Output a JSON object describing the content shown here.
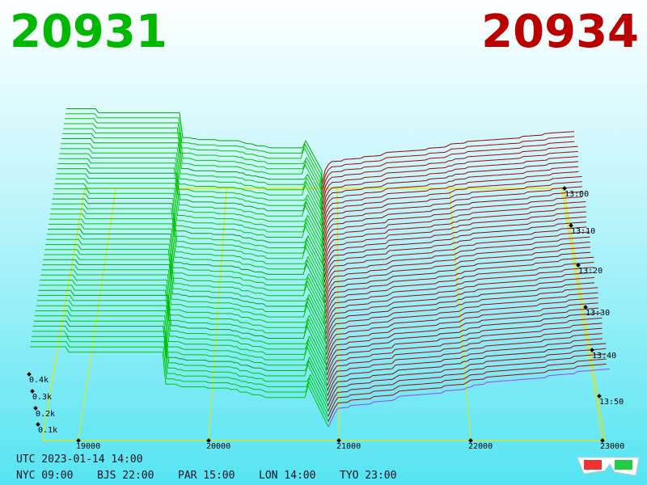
{
  "header": {
    "bid": "20931",
    "ask": "20934"
  },
  "price_axis": [
    "19000",
    "20000",
    "21000",
    "22000",
    "23000"
  ],
  "volume_axis": [
    "0.4k",
    "0.3k",
    "0.2k",
    "0.1k"
  ],
  "time_axis": [
    "13:00",
    "13:10",
    "13:20",
    "13:30",
    "13:40",
    "13:50"
  ],
  "footer": {
    "utc": "UTC 2023-01-14 14:00",
    "zones": [
      "NYC 09:00",
      "BJS 22:00",
      "PAR 15:00",
      "LON 14:00",
      "TYO 23:00"
    ]
  }
}
